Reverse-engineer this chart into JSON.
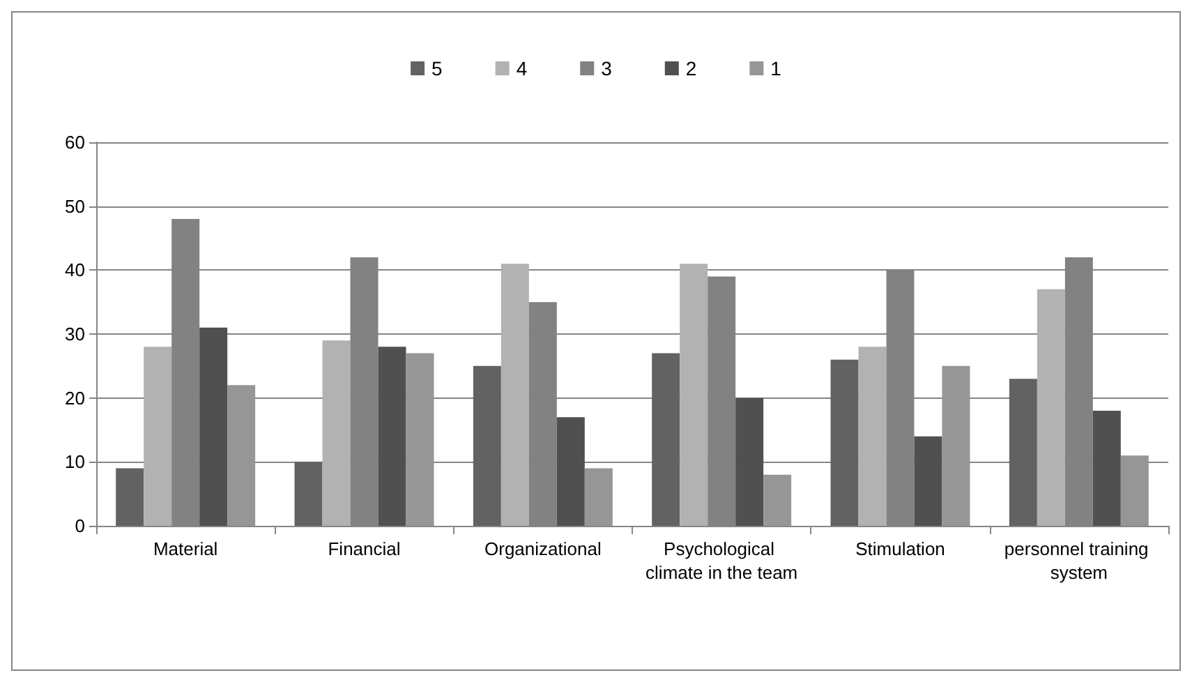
{
  "chart_data": {
    "type": "bar",
    "categories": [
      "Material",
      "Financial",
      "Organizational",
      "Psychological climate in the team",
      "Stimulation",
      "personnel training system"
    ],
    "series": [
      {
        "name": "5",
        "color": "#626262",
        "values": [
          9,
          10,
          25,
          27,
          26,
          23
        ]
      },
      {
        "name": "4",
        "color": "#b2b2b2",
        "values": [
          28,
          29,
          41,
          41,
          28,
          37
        ]
      },
      {
        "name": "3",
        "color": "#828282",
        "values": [
          48,
          42,
          35,
          39,
          40,
          42
        ]
      },
      {
        "name": "2",
        "color": "#505050",
        "values": [
          31,
          28,
          17,
          20,
          14,
          18
        ]
      },
      {
        "name": "1",
        "color": "#969696",
        "values": [
          22,
          27,
          9,
          8,
          25,
          11
        ]
      }
    ],
    "ylim": [
      0,
      60
    ],
    "yticks": [
      0,
      10,
      20,
      30,
      40,
      50,
      60
    ],
    "grid": "y",
    "legend": "top"
  }
}
